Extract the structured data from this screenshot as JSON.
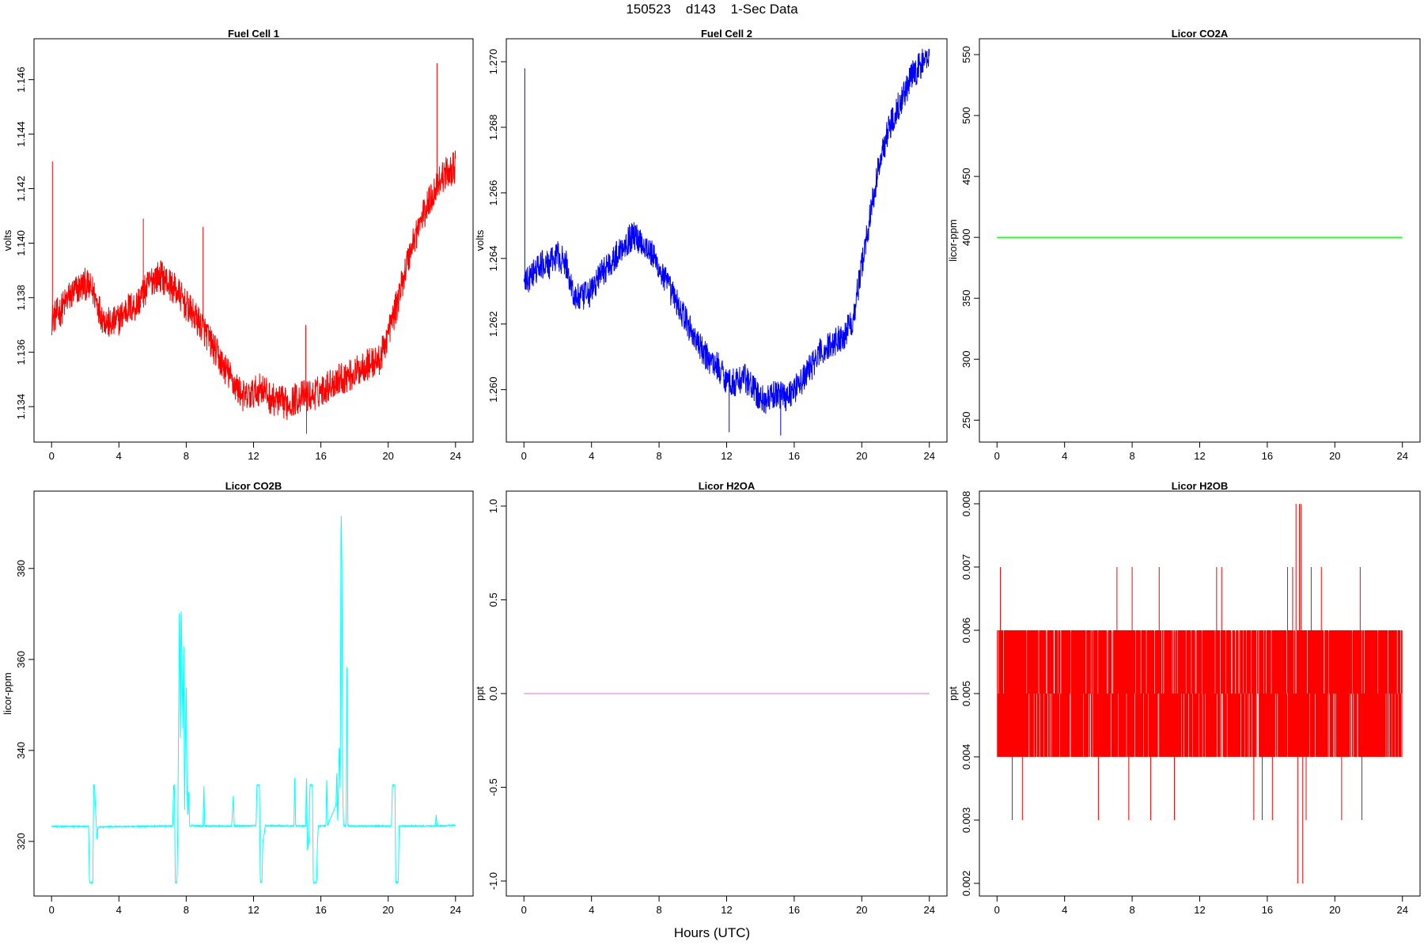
{
  "figure": {
    "title": "150523    d143    1-Sec Data",
    "xlabel": "Hours (UTC)"
  },
  "chart_data": [
    {
      "type": "line",
      "title": "Fuel Cell 1",
      "ylabel": "volts",
      "color": "#ff0000",
      "xlim": [
        0,
        24
      ],
      "ylim": [
        1.1327,
        1.1475
      ],
      "xticks": [
        0,
        4,
        8,
        12,
        16,
        20,
        24
      ],
      "xtick_labels": [
        "0",
        "4",
        "8",
        "12",
        "16",
        "20",
        "24"
      ],
      "yticks": [
        1.134,
        1.136,
        1.138,
        1.14,
        1.142,
        1.144,
        1.146
      ],
      "ytick_labels": [
        "1.134",
        "1.136",
        "1.138",
        "1.140",
        "1.142",
        "1.144",
        "1.146"
      ],
      "noise": 0.0012,
      "series": [
        {
          "x": [
            0,
            0.5,
            1,
            1.5,
            2,
            2.5,
            3,
            3.5,
            4,
            4.5,
            5,
            5.5,
            6,
            6.5,
            7,
            7.5,
            8,
            8.5,
            9,
            9.5,
            10,
            10.5,
            11,
            11.5,
            12,
            12.5,
            13,
            13.5,
            14,
            14.5,
            15,
            15.5,
            16,
            16.5,
            17,
            17.5,
            18,
            18.5,
            19,
            19.5,
            20,
            20.5,
            21,
            21.5,
            22,
            22.5,
            23,
            23.5,
            24
          ],
          "y": [
            1.1372,
            1.1375,
            1.138,
            1.1383,
            1.1385,
            1.1382,
            1.1373,
            1.137,
            1.1372,
            1.1376,
            1.1377,
            1.1382,
            1.1387,
            1.1388,
            1.1385,
            1.1382,
            1.1377,
            1.1373,
            1.1369,
            1.1363,
            1.1357,
            1.1352,
            1.1347,
            1.1343,
            1.1345,
            1.1347,
            1.1343,
            1.1342,
            1.1341,
            1.1343,
            1.1344,
            1.1344,
            1.1346,
            1.1348,
            1.135,
            1.1351,
            1.1352,
            1.1355,
            1.1356,
            1.1357,
            1.1367,
            1.1377,
            1.139,
            1.1401,
            1.1409,
            1.1416,
            1.1423,
            1.1426,
            1.1428
          ]
        }
      ],
      "spikes": [
        {
          "x": 0.05,
          "y": 1.143
        },
        {
          "x": 5.45,
          "y": 1.1409
        },
        {
          "x": 9.0,
          "y": 1.1406
        },
        {
          "x": 15.1,
          "y": 1.137
        },
        {
          "x": 15.15,
          "y": 1.133
        },
        {
          "x": 22.9,
          "y": 1.1466
        }
      ]
    },
    {
      "type": "line",
      "title": "Fuel Cell 2",
      "ylabel": "volts",
      "color": "#0000ff",
      "xlim": [
        0,
        24
      ],
      "ylim": [
        1.2584,
        1.2707
      ],
      "xticks": [
        0,
        4,
        8,
        12,
        16,
        20,
        24
      ],
      "xtick_labels": [
        "0",
        "4",
        "8",
        "12",
        "16",
        "20",
        "24"
      ],
      "yticks": [
        1.26,
        1.262,
        1.264,
        1.266,
        1.268,
        1.27
      ],
      "ytick_labels": [
        "1.260",
        "1.262",
        "1.264",
        "1.266",
        "1.268",
        "1.270"
      ],
      "noise": 0.0009,
      "series": [
        {
          "x": [
            0,
            0.5,
            1,
            1.5,
            2,
            2.5,
            3,
            3.5,
            4,
            4.5,
            5,
            5.5,
            6,
            6.5,
            7,
            7.5,
            8,
            8.5,
            9,
            9.5,
            10,
            10.5,
            11,
            11.5,
            12,
            12.5,
            13,
            13.5,
            14,
            14.5,
            15,
            15.5,
            16,
            16.5,
            17,
            17.5,
            18,
            18.5,
            19,
            19.5,
            20,
            20.5,
            21,
            21.5,
            22,
            22.5,
            23,
            23.5,
            24
          ],
          "y": [
            1.2632,
            1.2635,
            1.2638,
            1.2638,
            1.2641,
            1.2638,
            1.2628,
            1.2628,
            1.263,
            1.2635,
            1.2638,
            1.2641,
            1.2645,
            1.2647,
            1.2645,
            1.2642,
            1.2637,
            1.2632,
            1.2627,
            1.2622,
            1.2617,
            1.2612,
            1.2609,
            1.2607,
            1.2603,
            1.2602,
            1.2604,
            1.2601,
            1.2597,
            1.2597,
            1.2599,
            1.2598,
            1.26,
            1.2603,
            1.2607,
            1.2611,
            1.2613,
            1.2615,
            1.2617,
            1.2622,
            1.2638,
            1.2653,
            1.2668,
            1.2678,
            1.2685,
            1.269,
            1.2696,
            1.2699,
            1.2702
          ]
        }
      ],
      "spikes": [
        {
          "x": 0.05,
          "y": 1.2698
        },
        {
          "x": 12.15,
          "y": 1.2587
        },
        {
          "x": 15.2,
          "y": 1.2586
        }
      ]
    },
    {
      "type": "line",
      "title": "Licor CO2A",
      "ylabel": "licor-ppm",
      "color": "#00ff00",
      "xlim": [
        0,
        24
      ],
      "ylim": [
        232,
        563
      ],
      "xticks": [
        0,
        4,
        8,
        12,
        16,
        20,
        24
      ],
      "xtick_labels": [
        "0",
        "4",
        "8",
        "12",
        "16",
        "20",
        "24"
      ],
      "yticks": [
        250,
        300,
        350,
        400,
        450,
        500,
        550
      ],
      "ytick_labels": [
        "250",
        "300",
        "350",
        "400",
        "450",
        "500",
        "550"
      ],
      "noise": 0,
      "series": [
        {
          "x": [
            0,
            24
          ],
          "y": [
            400,
            400
          ]
        }
      ],
      "spikes": []
    },
    {
      "type": "line",
      "title": "Licor CO2B",
      "ylabel": "licor-ppm",
      "color": "#00ffff",
      "xlim": [
        0,
        24
      ],
      "ylim": [
        308,
        397
      ],
      "xticks": [
        0,
        4,
        8,
        12,
        16,
        20,
        24
      ],
      "xtick_labels": [
        "0",
        "4",
        "8",
        "12",
        "16",
        "20",
        "24"
      ],
      "yticks": [
        320,
        340,
        360,
        380
      ],
      "ytick_labels": [
        "320",
        "340",
        "360",
        "380"
      ],
      "noise": 0.3,
      "series": [
        {
          "x": [
            0,
            2.2,
            2.25,
            2.45,
            2.5,
            2.55,
            2.7,
            2.75,
            7.2,
            7.25,
            7.3,
            7.35,
            7.45,
            7.5,
            7.6,
            7.65,
            7.7,
            7.8,
            7.85,
            7.9,
            8.0,
            8.05,
            8.1,
            8.15,
            8.2,
            8.3,
            9.0,
            9.05,
            9.1,
            10.7,
            10.8,
            10.85,
            10.9,
            12.15,
            12.2,
            12.35,
            12.4,
            12.5,
            12.55,
            12.65,
            12.7,
            14.4,
            14.45,
            14.5,
            15.1,
            15.15,
            15.2,
            15.3,
            15.35,
            15.5,
            15.55,
            15.75,
            15.8,
            15.85,
            16.3,
            16.35,
            16.4,
            16.9,
            16.95,
            17.0,
            17.1,
            17.15,
            17.2,
            17.25,
            17.3,
            17.35,
            17.5,
            17.55,
            17.6,
            20.2,
            20.25,
            20.4,
            20.45,
            20.6,
            20.65,
            22.8,
            22.85,
            22.9,
            24
          ],
          "y": [
            323.3,
            323.3,
            311,
            311,
            332.4,
            332.4,
            320,
            323.2,
            323.4,
            332.4,
            332.4,
            311,
            311,
            323.2,
            373,
            340,
            372.5,
            345,
            364,
            326,
            357,
            330,
            325,
            332,
            323.4,
            323.5,
            323.4,
            332.4,
            323.4,
            323.4,
            330,
            323.4,
            323.4,
            323.5,
            332.4,
            332.4,
            311,
            311,
            320,
            322,
            323.5,
            323.4,
            334.3,
            323.5,
            323.4,
            335.5,
            318,
            320,
            332.4,
            332.4,
            311,
            311,
            320,
            323.5,
            323.4,
            334.5,
            323.5,
            328,
            336,
            323.5,
            342,
            330,
            395,
            380,
            330,
            323.5,
            323.4,
            361.5,
            323.4,
            323.4,
            332.4,
            332.4,
            311,
            311,
            323.4,
            323.4,
            326,
            323.4,
            323.6
          ]
        }
      ],
      "spikes": []
    },
    {
      "type": "line",
      "title": "Licor H2OA",
      "ylabel": "ppt",
      "color": "#e4a0ea",
      "xlim": [
        0,
        24
      ],
      "ylim": [
        -1.08,
        1.08
      ],
      "xticks": [
        0,
        4,
        8,
        12,
        16,
        20,
        24
      ],
      "xtick_labels": [
        "0",
        "4",
        "8",
        "12",
        "16",
        "20",
        "24"
      ],
      "yticks": [
        -1.0,
        -0.5,
        0.0,
        0.5,
        1.0
      ],
      "ytick_labels": [
        "-1.0",
        "-0.5",
        "0.0",
        "0.5",
        "1.0"
      ],
      "noise": 0,
      "series": [
        {
          "x": [
            0,
            24
          ],
          "y": [
            0,
            0
          ]
        }
      ],
      "spikes": []
    },
    {
      "type": "line",
      "title": "Licor H2OB",
      "ylabel": "ppt",
      "color": "#ff0000",
      "xlim": [
        0,
        24
      ],
      "ylim": [
        0.0018,
        0.0082
      ],
      "xticks": [
        0,
        4,
        8,
        12,
        16,
        20,
        24
      ],
      "xtick_labels": [
        "0",
        "4",
        "8",
        "12",
        "16",
        "20",
        "24"
      ],
      "yticks": [
        0.002,
        0.003,
        0.004,
        0.005,
        0.006,
        0.007,
        0.008
      ],
      "ytick_labels": [
        "0.002",
        "0.003",
        "0.004",
        "0.005",
        "0.006",
        "0.007",
        "0.008"
      ],
      "noise": 0,
      "band": {
        "low": 0.004,
        "high": 0.006
      },
      "series": [
        {
          "x": [
            0,
            24
          ],
          "y": [
            0.004,
            0.006
          ]
        }
      ],
      "spikes": [
        {
          "x": 0.2,
          "y": 0.007
        },
        {
          "x": 0.9,
          "y": 0.003
        },
        {
          "x": 1.5,
          "y": 0.003
        },
        {
          "x": 6.0,
          "y": 0.003
        },
        {
          "x": 7.1,
          "y": 0.007
        },
        {
          "x": 7.8,
          "y": 0.003
        },
        {
          "x": 8.0,
          "y": 0.007
        },
        {
          "x": 9.1,
          "y": 0.003
        },
        {
          "x": 9.6,
          "y": 0.007
        },
        {
          "x": 10.5,
          "y": 0.003
        },
        {
          "x": 13.0,
          "y": 0.007
        },
        {
          "x": 13.3,
          "y": 0.007
        },
        {
          "x": 15.2,
          "y": 0.003
        },
        {
          "x": 15.7,
          "y": 0.003
        },
        {
          "x": 16.3,
          "y": 0.003
        },
        {
          "x": 17.2,
          "y": 0.007
        },
        {
          "x": 17.5,
          "y": 0.007
        },
        {
          "x": 17.7,
          "y": 0.008
        },
        {
          "x": 17.8,
          "y": 0.002
        },
        {
          "x": 17.9,
          "y": 0.008
        },
        {
          "x": 18.0,
          "y": 0.008
        },
        {
          "x": 18.1,
          "y": 0.002
        },
        {
          "x": 18.3,
          "y": 0.003
        },
        {
          "x": 18.6,
          "y": 0.007
        },
        {
          "x": 19.2,
          "y": 0.007
        },
        {
          "x": 20.4,
          "y": 0.003
        },
        {
          "x": 21.5,
          "y": 0.007
        },
        {
          "x": 21.6,
          "y": 0.003
        }
      ]
    }
  ]
}
